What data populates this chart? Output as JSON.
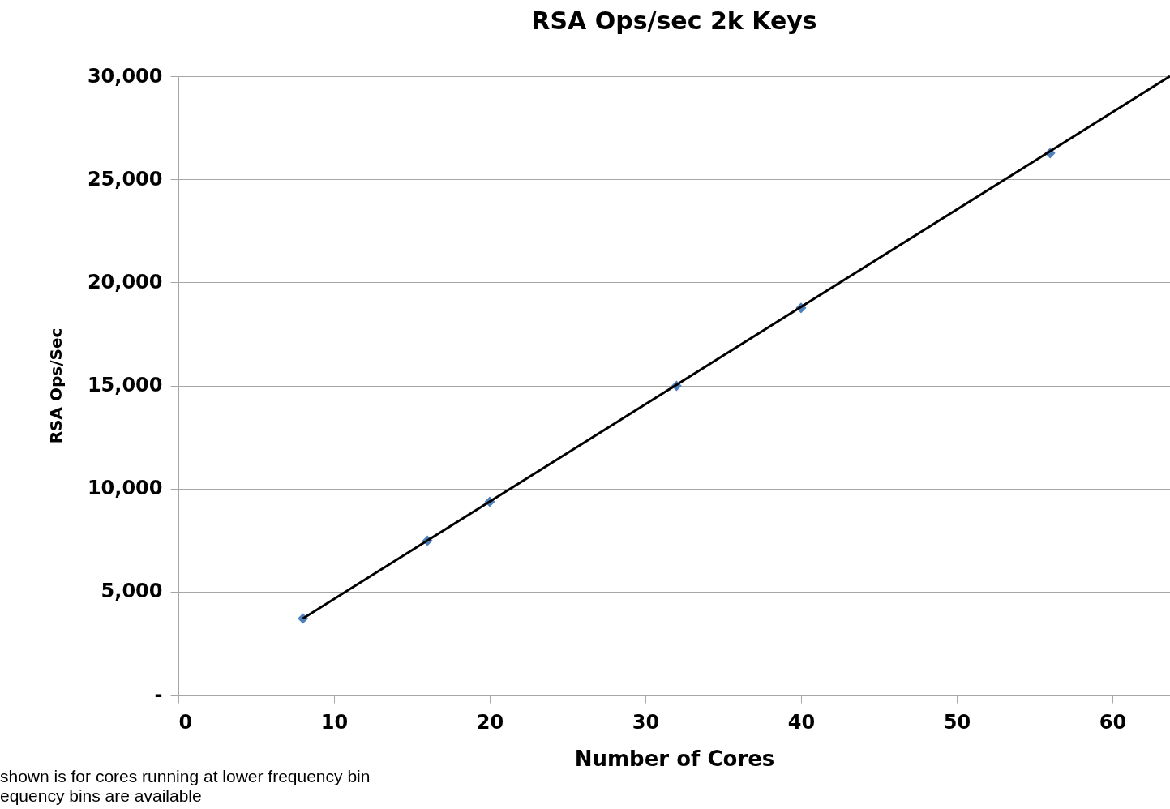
{
  "chart_data": {
    "type": "scatter",
    "title": "RSA Ops/sec 2k Keys",
    "xlabel": "Number of Cores",
    "ylabel": "RSA Ops/Sec",
    "xlim": [
      0,
      63.7
    ],
    "xticks": [
      0,
      10,
      20,
      30,
      40,
      50,
      60
    ],
    "ylim": [
      0,
      30000
    ],
    "yticks": [
      {
        "value": 0,
        "label": "-"
      },
      {
        "value": 5000,
        "label": "5,000"
      },
      {
        "value": 10000,
        "label": "10,000"
      },
      {
        "value": 15000,
        "label": "15,000"
      },
      {
        "value": 20000,
        "label": "20,000"
      },
      {
        "value": 25000,
        "label": "25,000"
      },
      {
        "value": 30000,
        "label": "30,000"
      }
    ],
    "grid": "y",
    "marker": "diamond",
    "series": [
      {
        "color": "#4f81bd",
        "x": [
          8,
          16,
          20,
          32,
          40,
          56
        ],
        "values": [
          3700,
          7470,
          9360,
          14980,
          18760,
          26270
        ]
      },
      {
        "type": "line",
        "marker": "none",
        "color": "#000000",
        "x": [
          8,
          63.7
        ],
        "values": [
          3700,
          30000
        ]
      }
    ],
    "annotations": [
      "shown is for cores running at lower frequency bin",
      "equency bins are available"
    ]
  }
}
